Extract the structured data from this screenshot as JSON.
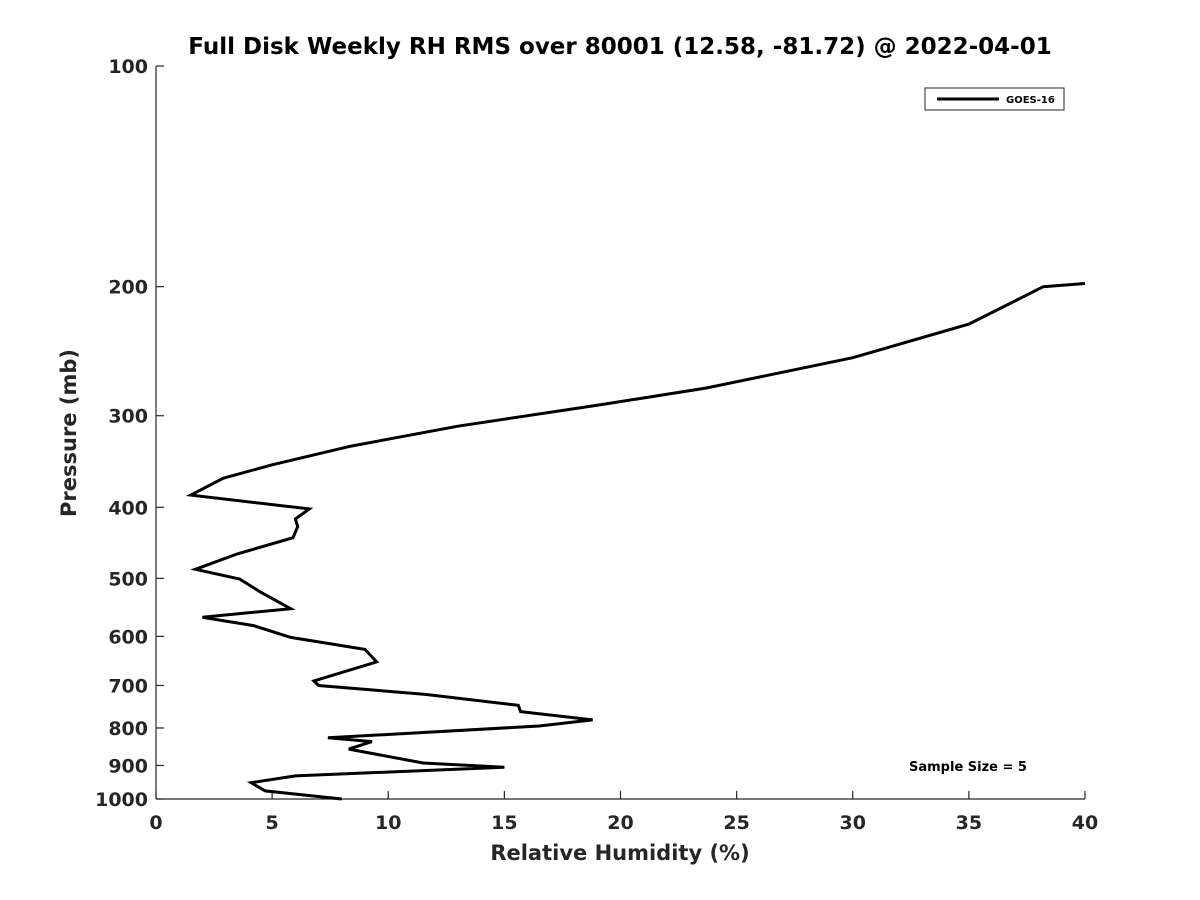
{
  "chart_data": {
    "type": "line",
    "title": "Full Disk Weekly RH RMS over 80001 (12.58, -81.72) @ 2022-04-01",
    "xlabel": "Relative Humidity (%)",
    "ylabel": "Pressure (mb)",
    "xlim": [
      0,
      40
    ],
    "ylim": [
      100,
      1000
    ],
    "yscale": "log",
    "y_reversed": true,
    "xticks": [
      0,
      5,
      10,
      15,
      20,
      25,
      30,
      35,
      40
    ],
    "yticks": [
      100,
      200,
      300,
      400,
      500,
      600,
      700,
      800,
      900,
      1000
    ],
    "grid": false,
    "legend_position": "top-right",
    "annotation": "Sample Size = 5",
    "colors": {
      "line": "#000000",
      "text": "#262626"
    },
    "series": [
      {
        "name": "GOES-16",
        "points": [
          [
            40.0,
            198
          ],
          [
            38.2,
            200
          ],
          [
            35.0,
            225
          ],
          [
            30.0,
            250
          ],
          [
            23.7,
            275
          ],
          [
            19.1,
            290
          ],
          [
            13.0,
            310
          ],
          [
            8.4,
            330
          ],
          [
            5.0,
            350
          ],
          [
            2.9,
            365
          ],
          [
            1.5,
            385
          ],
          [
            6.6,
            402
          ],
          [
            6.0,
            415
          ],
          [
            6.1,
            425
          ],
          [
            5.9,
            440
          ],
          [
            3.5,
            463
          ],
          [
            1.7,
            486
          ],
          [
            3.6,
            501
          ],
          [
            4.5,
            522
          ],
          [
            5.8,
            550
          ],
          [
            2.0,
            565
          ],
          [
            4.2,
            580
          ],
          [
            5.8,
            602
          ],
          [
            9.0,
            625
          ],
          [
            9.5,
            650
          ],
          [
            6.8,
            690
          ],
          [
            7.0,
            700
          ],
          [
            11.6,
            720
          ],
          [
            15.6,
            745
          ],
          [
            15.7,
            760
          ],
          [
            18.8,
            780
          ],
          [
            16.5,
            795
          ],
          [
            7.4,
            825
          ],
          [
            9.3,
            835
          ],
          [
            8.3,
            855
          ],
          [
            11.5,
            893
          ],
          [
            15.0,
            905
          ],
          [
            6.0,
            930
          ],
          [
            4.1,
            950
          ],
          [
            4.7,
            975
          ],
          [
            8.0,
            1000
          ]
        ]
      }
    ]
  }
}
